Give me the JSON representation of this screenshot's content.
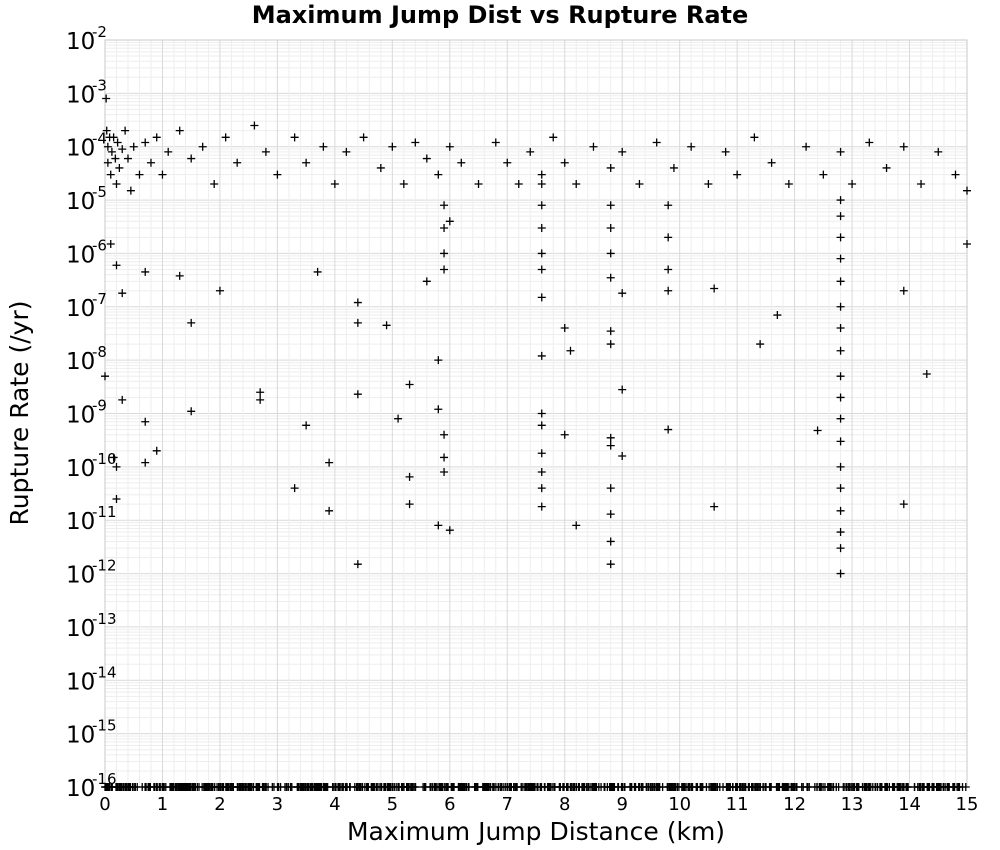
{
  "chart_data": {
    "type": "scatter",
    "title": "Maximum Jump Dist vs Rupture Rate",
    "xlabel": "Maximum Jump Distance (km)",
    "ylabel": "Rupture Rate (/yr)",
    "xlim": [
      0,
      15
    ],
    "y_log_exponent_range": [
      -16,
      -2
    ],
    "y_scale": "log",
    "x_ticks": [
      "0",
      "1",
      "2",
      "3",
      "4",
      "5",
      "6",
      "7",
      "8",
      "9",
      "10",
      "11",
      "12",
      "13",
      "14",
      "15"
    ],
    "y_tick_exponents": [
      -2,
      -3,
      -4,
      -5,
      -6,
      -7,
      -8,
      -9,
      -10,
      -11,
      -12,
      -13,
      -14,
      -15,
      -16
    ],
    "y_tick_base": "10",
    "marker": "plus",
    "grid": true,
    "notes_floor_value": 1e-16,
    "points": [
      [
        0.02,
        0.0008
      ],
      [
        0.03,
        0.0002
      ],
      [
        0.05,
        0.0001
      ],
      [
        0.05,
        5e-05
      ],
      [
        0.08,
        0.00015
      ],
      [
        0.1,
        3e-05
      ],
      [
        0.12,
        8e-05
      ],
      [
        0.15,
        0.00015
      ],
      [
        0.18,
        6e-05
      ],
      [
        0.2,
        2e-05
      ],
      [
        0.22,
        0.00012
      ],
      [
        0.25,
        4e-05
      ],
      [
        0.3,
        9e-05
      ],
      [
        0.35,
        0.0002
      ],
      [
        0.4,
        6e-05
      ],
      [
        0.45,
        1.5e-05
      ],
      [
        0.5,
        0.0001
      ],
      [
        0.6,
        3e-05
      ],
      [
        0.7,
        0.00012
      ],
      [
        0.8,
        5e-05
      ],
      [
        0.9,
        0.00015
      ],
      [
        1.0,
        3e-05
      ],
      [
        1.1,
        8e-05
      ],
      [
        1.3,
        0.0002
      ],
      [
        1.5,
        6e-05
      ],
      [
        1.7,
        0.0001
      ],
      [
        1.9,
        2e-05
      ],
      [
        2.1,
        0.00015
      ],
      [
        2.3,
        5e-05
      ],
      [
        2.6,
        0.00025
      ],
      [
        2.8,
        8e-05
      ],
      [
        3.0,
        3e-05
      ],
      [
        3.3,
        0.00015
      ],
      [
        3.5,
        5e-05
      ],
      [
        3.8,
        0.0001
      ],
      [
        4.0,
        2e-05
      ],
      [
        4.2,
        8e-05
      ],
      [
        4.5,
        0.00015
      ],
      [
        4.8,
        4e-05
      ],
      [
        5.0,
        0.0001
      ],
      [
        5.2,
        2e-05
      ],
      [
        5.4,
        0.00012
      ],
      [
        5.6,
        6e-05
      ],
      [
        5.8,
        3e-05
      ],
      [
        6.0,
        0.0001
      ],
      [
        6.2,
        5e-05
      ],
      [
        6.5,
        2e-05
      ],
      [
        6.8,
        0.00012
      ],
      [
        7.0,
        5e-05
      ],
      [
        7.2,
        2e-05
      ],
      [
        7.4,
        8e-05
      ],
      [
        7.6,
        3e-05
      ],
      [
        7.8,
        0.00015
      ],
      [
        8.0,
        5e-05
      ],
      [
        8.2,
        2e-05
      ],
      [
        8.5,
        0.0001
      ],
      [
        8.8,
        4e-05
      ],
      [
        9.0,
        8e-05
      ],
      [
        9.3,
        2e-05
      ],
      [
        9.6,
        0.00012
      ],
      [
        9.9,
        4e-05
      ],
      [
        10.2,
        0.0001
      ],
      [
        10.5,
        2e-05
      ],
      [
        10.8,
        8e-05
      ],
      [
        11.0,
        3e-05
      ],
      [
        11.3,
        0.00015
      ],
      [
        11.6,
        5e-05
      ],
      [
        11.9,
        2e-05
      ],
      [
        12.2,
        0.0001
      ],
      [
        12.5,
        3e-05
      ],
      [
        12.8,
        8e-05
      ],
      [
        13.0,
        2e-05
      ],
      [
        13.3,
        0.00012
      ],
      [
        13.6,
        4e-05
      ],
      [
        13.9,
        0.0001
      ],
      [
        14.2,
        2e-05
      ],
      [
        14.5,
        8e-05
      ],
      [
        14.8,
        3e-05
      ],
      [
        15.0,
        1.5e-05
      ],
      [
        0.1,
        1.5e-06
      ],
      [
        0.2,
        6e-07
      ],
      [
        0.3,
        1.8e-07
      ],
      [
        0.7,
        4.5e-07
      ],
      [
        1.3,
        3.8e-07
      ],
      [
        1.5,
        5e-08
      ],
      [
        2.0,
        2e-07
      ],
      [
        3.7,
        4.5e-07
      ],
      [
        4.4,
        1.2e-07
      ],
      [
        4.4,
        5e-08
      ],
      [
        4.9,
        4.5e-08
      ],
      [
        5.6,
        3e-07
      ],
      [
        5.8,
        1e-08
      ],
      [
        7.6,
        1.5e-07
      ],
      [
        7.6,
        1.2e-08
      ],
      [
        8.0,
        4e-08
      ],
      [
        8.1,
        1.5e-08
      ],
      [
        8.8,
        3.5e-08
      ],
      [
        8.8,
        2e-08
      ],
      [
        9.0,
        1.8e-07
      ],
      [
        10.6,
        2.2e-07
      ],
      [
        11.4,
        2e-08
      ],
      [
        11.7,
        7e-08
      ],
      [
        13.9,
        2e-07
      ],
      [
        15.0,
        1.5e-06
      ],
      [
        0.0,
        5e-09
      ],
      [
        0.3,
        1.8e-09
      ],
      [
        0.7,
        7e-10
      ],
      [
        0.9,
        2e-10
      ],
      [
        0.7,
        1.2e-10
      ],
      [
        0.15,
        1.5e-10
      ],
      [
        0.2,
        1e-10
      ],
      [
        0.2,
        2.5e-11
      ],
      [
        1.5,
        1.1e-09
      ],
      [
        2.7,
        2.5e-09
      ],
      [
        2.7,
        1.8e-09
      ],
      [
        3.5,
        6e-10
      ],
      [
        3.3,
        4e-11
      ],
      [
        3.9,
        1.2e-10
      ],
      [
        3.9,
        1.5e-11
      ],
      [
        4.4,
        2.3e-09
      ],
      [
        4.4,
        1.5e-12
      ],
      [
        5.1,
        8e-10
      ],
      [
        5.3,
        3.5e-09
      ],
      [
        5.3,
        6.5e-11
      ],
      [
        5.3,
        2e-11
      ],
      [
        5.8,
        1.2e-09
      ],
      [
        5.9,
        4e-10
      ],
      [
        5.9,
        1.5e-10
      ],
      [
        5.9,
        8e-11
      ],
      [
        5.8,
        8e-12
      ],
      [
        6.0,
        6.5e-12
      ],
      [
        7.6,
        1e-09
      ],
      [
        7.6,
        6e-10
      ],
      [
        7.6,
        1.8e-10
      ],
      [
        7.6,
        8e-11
      ],
      [
        7.6,
        4e-11
      ],
      [
        7.6,
        1.8e-11
      ],
      [
        8.0,
        4e-10
      ],
      [
        8.2,
        8e-12
      ],
      [
        8.8,
        3.5e-10
      ],
      [
        8.8,
        2.5e-10
      ],
      [
        8.8,
        4e-11
      ],
      [
        8.8,
        1.3e-11
      ],
      [
        8.8,
        4e-12
      ],
      [
        8.8,
        1.5e-12
      ],
      [
        9.0,
        2.8e-09
      ],
      [
        9.0,
        1.6e-10
      ],
      [
        9.8,
        5e-10
      ],
      [
        10.6,
        1.8e-11
      ],
      [
        12.4,
        4.8e-10
      ],
      [
        12.8,
        1e-12
      ],
      [
        13.9,
        2e-11
      ],
      [
        14.3,
        5.5e-09
      ],
      [
        12.8,
        1e-05
      ],
      [
        12.8,
        5e-06
      ],
      [
        12.8,
        2e-06
      ],
      [
        12.8,
        8e-07
      ],
      [
        12.8,
        3e-07
      ],
      [
        12.8,
        1e-07
      ],
      [
        12.8,
        4e-08
      ],
      [
        12.8,
        1.5e-08
      ],
      [
        12.8,
        5e-09
      ],
      [
        12.8,
        2e-09
      ],
      [
        12.8,
        8e-10
      ],
      [
        12.8,
        3e-10
      ],
      [
        12.8,
        1e-10
      ],
      [
        12.8,
        4e-11
      ],
      [
        12.8,
        1.5e-11
      ],
      [
        12.8,
        6e-12
      ],
      [
        12.8,
        3e-12
      ],
      [
        7.6,
        2e-05
      ],
      [
        7.6,
        8e-06
      ],
      [
        7.6,
        3e-06
      ],
      [
        7.6,
        1e-06
      ],
      [
        7.6,
        5e-07
      ],
      [
        8.8,
        8e-06
      ],
      [
        8.8,
        3e-06
      ],
      [
        8.8,
        1e-06
      ],
      [
        8.8,
        3.5e-07
      ],
      [
        9.8,
        8e-06
      ],
      [
        9.8,
        2e-06
      ],
      [
        9.8,
        5e-07
      ],
      [
        9.8,
        2e-07
      ],
      [
        5.9,
        8e-06
      ],
      [
        5.9,
        3e-06
      ],
      [
        5.9,
        1e-06
      ],
      [
        5.9,
        5e-07
      ],
      [
        6.0,
        4e-06
      ]
    ],
    "floor_x_count": 800
  }
}
